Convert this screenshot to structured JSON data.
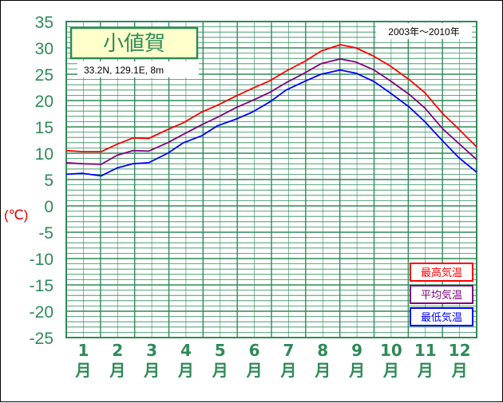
{
  "chart_data": {
    "type": "line",
    "title": "小値賀",
    "subtitle": "33.2N,  129.1E,  8m",
    "period": "2003年〜2010年",
    "ylabel": "(℃)",
    "ylim": [
      -25,
      35
    ],
    "yticks": [
      "35",
      "30",
      "25",
      "20",
      "15",
      "10",
      "5",
      "0",
      "-5",
      "-10",
      "-15",
      "-20",
      "-25"
    ],
    "month_numbers": [
      "1",
      "2",
      "3",
      "4",
      "5",
      "6",
      "7",
      "8",
      "9",
      "10",
      "11",
      "12"
    ],
    "month_suffix": "月",
    "legend_position": "bottom-right",
    "grid": true,
    "x": [
      1,
      15,
      32,
      46,
      60,
      74,
      91,
      105,
      121,
      135,
      152,
      166,
      182,
      196,
      213,
      227,
      244,
      258,
      274,
      288,
      305,
      319,
      335,
      349,
      365
    ],
    "series": [
      {
        "name": "最高気温",
        "color": "#ff0000",
        "values": [
          10.5,
          10.3,
          10.3,
          11.7,
          12.9,
          12.8,
          14.5,
          15.8,
          17.8,
          19.1,
          20.9,
          22.3,
          23.8,
          25.6,
          27.5,
          29.4,
          30.6,
          30.0,
          28.4,
          26.6,
          24.0,
          21.5,
          17.5,
          14.6,
          11.2
        ]
      },
      {
        "name": "平均気温",
        "color": "#800080",
        "values": [
          8.2,
          8.0,
          7.9,
          9.6,
          10.5,
          10.4,
          12.0,
          13.6,
          15.4,
          16.8,
          18.7,
          20.0,
          21.6,
          23.4,
          25.3,
          27.0,
          27.9,
          27.3,
          25.8,
          23.8,
          21.2,
          18.6,
          14.6,
          11.9,
          8.8
        ]
      },
      {
        "name": "最低気温",
        "color": "#0000ff",
        "values": [
          6.0,
          6.2,
          5.7,
          7.2,
          8.0,
          8.2,
          10.0,
          12.0,
          13.3,
          15.2,
          16.5,
          17.8,
          19.8,
          22.0,
          23.7,
          25.0,
          25.8,
          25.2,
          23.6,
          21.5,
          18.8,
          16.0,
          12.3,
          9.2,
          6.4
        ]
      }
    ]
  }
}
